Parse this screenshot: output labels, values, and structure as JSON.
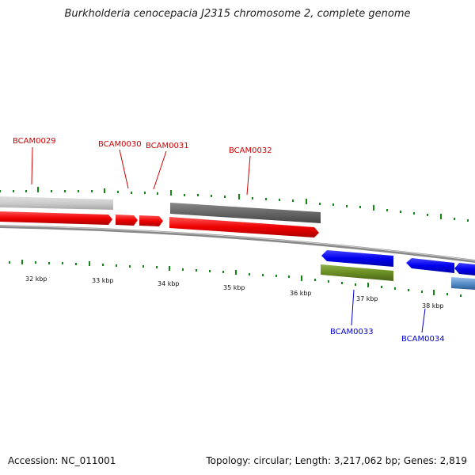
{
  "title": "Burkholderia cenocepacia J2315 chromosome 2, complete genome",
  "footer": {
    "accession": "Accession: NC_011001",
    "summary": "Topology: circular; Length: 3,217,062 bp; Genes: 2,819"
  },
  "ticks": [
    "32 kbp",
    "33 kbp",
    "34 kbp",
    "35 kbp",
    "36 kbp",
    "37 kbp",
    "38 kbp"
  ],
  "genes": [
    {
      "label": "BCAM0029",
      "strand": "forward",
      "color": "#cc0000"
    },
    {
      "label": "BCAM0030",
      "strand": "forward",
      "color": "#cc0000"
    },
    {
      "label": "BCAM0031",
      "strand": "forward",
      "color": "#cc0000"
    },
    {
      "label": "BCAM0032",
      "strand": "forward",
      "color": "#cc0000"
    },
    {
      "label": "BCAM0033",
      "strand": "reverse",
      "color": "#0000cc"
    },
    {
      "label": "BCAM0034",
      "strand": "reverse",
      "color": "#0000cc"
    }
  ],
  "colors": {
    "forward_cds": "#ee1111",
    "reverse_cds": "#1111dd",
    "gray_track": "#666666",
    "light_track": "#cccccc",
    "green_track": "#6b8e23",
    "blue_track": "#5a8fc8",
    "backbone": "#888888",
    "tick_mark": "#118811"
  }
}
